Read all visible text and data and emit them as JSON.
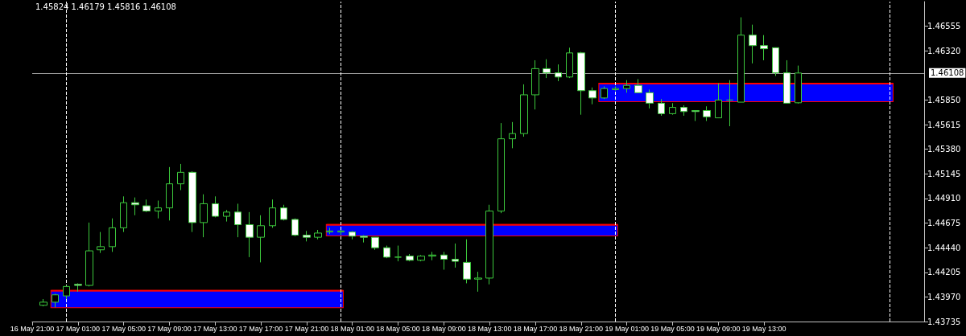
{
  "chart_data": {
    "type": "candlestick",
    "x": [
      "--05-16T22:00",
      "--05-16T23:00",
      "--05-17T00:00",
      "--05-17T01:00",
      "--05-17T02:00",
      "--05-17T03:00",
      "--05-17T04:00",
      "--05-17T05:00",
      "--05-17T06:00",
      "--05-17T07:00",
      "--05-17T08:00",
      "--05-17T09:00",
      "--05-17T10:00",
      "--05-17T11:00",
      "--05-17T12:00",
      "--05-17T13:00",
      "--05-17T14:00",
      "--05-17T15:00",
      "--05-17T16:00",
      "--05-17T17:00",
      "--05-17T18:00",
      "--05-17T19:00",
      "--05-17T20:00",
      "--05-17T21:00",
      "--05-17T22:00",
      "--05-17T23:00",
      "--05-18T00:00",
      "--05-18T01:00",
      "--05-18T02:00",
      "--05-18T03:00",
      "--05-18T04:00",
      "--05-18T05:00",
      "--05-18T06:00",
      "--05-18T07:00",
      "--05-18T08:00",
      "--05-18T09:00",
      "--05-18T10:00",
      "--05-18T11:00",
      "--05-18T12:00",
      "--05-18T13:00",
      "--05-18T14:00",
      "--05-18T15:00",
      "--05-18T16:00",
      "--05-18T17:00",
      "--05-18T18:00",
      "--05-18T19:00",
      "--05-18T20:00",
      "--05-18T21:00",
      "--05-18T22:00",
      "--05-18T23:00",
      "--05-19T00:00",
      "--05-19T01:00",
      "--05-19T02:00",
      "--05-19T03:00",
      "--05-19T04:00",
      "--05-19T05:00",
      "--05-19T06:00",
      "--05-19T07:00",
      "--05-19T08:00",
      "--05-19T09:00",
      "--05-19T10:00",
      "--05-19T11:00",
      "--05-19T12:00",
      "--05-19T13:00",
      "--05-19T14:00",
      "--05-19T15:00",
      "--05-19T16:00"
    ],
    "series": [
      {
        "color": "#3cc83c",
        "ohlc": [
          [
            1.4389,
            1.4395,
            1.4388,
            1.4392
          ],
          [
            1.4392,
            1.44,
            1.4387,
            1.4399
          ],
          [
            1.4398,
            1.4408,
            1.4395,
            1.4407
          ],
          [
            1.4409,
            1.441,
            1.4402,
            1.4408
          ],
          [
            1.4408,
            1.4468,
            1.4407,
            1.4441
          ],
          [
            1.4442,
            1.4459,
            1.4439,
            1.4445
          ],
          [
            1.4445,
            1.4472,
            1.444,
            1.4463
          ],
          [
            1.4463,
            1.4493,
            1.4459,
            1.4487
          ],
          [
            1.4487,
            1.4492,
            1.4475,
            1.4485
          ],
          [
            1.4484,
            1.449,
            1.4478,
            1.4479
          ],
          [
            1.4479,
            1.4489,
            1.4472,
            1.4482
          ],
          [
            1.4482,
            1.4521,
            1.447,
            1.4505
          ],
          [
            1.4505,
            1.4524,
            1.4499,
            1.4516
          ],
          [
            1.4516,
            1.4517,
            1.4459,
            1.4468
          ],
          [
            1.4468,
            1.4495,
            1.4454,
            1.4486
          ],
          [
            1.4486,
            1.4493,
            1.4473,
            1.4474
          ],
          [
            1.4474,
            1.448,
            1.4469,
            1.4478
          ],
          [
            1.4478,
            1.4486,
            1.4454,
            1.4466
          ],
          [
            1.4466,
            1.4478,
            1.4435,
            1.4454
          ],
          [
            1.4454,
            1.4475,
            1.443,
            1.4465
          ],
          [
            1.4465,
            1.449,
            1.4463,
            1.4482
          ],
          [
            1.4482,
            1.4485,
            1.447,
            1.4471
          ],
          [
            1.4471,
            1.4472,
            1.4455,
            1.4456
          ],
          [
            1.4456,
            1.446,
            1.445,
            1.4454
          ],
          [
            1.4454,
            1.4461,
            1.4452,
            1.4458
          ],
          [
            1.4459,
            1.4463,
            1.4457,
            1.446
          ],
          [
            1.4459,
            1.4461,
            1.4456,
            1.446
          ],
          [
            1.4459,
            1.446,
            1.4452,
            1.4455
          ],
          [
            1.4455,
            1.4456,
            1.4449,
            1.4454
          ],
          [
            1.4454,
            1.4454,
            1.4442,
            1.4444
          ],
          [
            1.4444,
            1.4446,
            1.4434,
            1.4435
          ],
          [
            1.4435,
            1.4446,
            1.4431,
            1.4435
          ],
          [
            1.4436,
            1.4438,
            1.4431,
            1.4432
          ],
          [
            1.4432,
            1.4437,
            1.4431,
            1.4436
          ],
          [
            1.4436,
            1.444,
            1.4432,
            1.4437
          ],
          [
            1.4437,
            1.444,
            1.4423,
            1.4433
          ],
          [
            1.4433,
            1.4448,
            1.4425,
            1.4431
          ],
          [
            1.443,
            1.4452,
            1.441,
            1.4414
          ],
          [
            1.4414,
            1.4421,
            1.4402,
            1.4415
          ],
          [
            1.4415,
            1.4485,
            1.4409,
            1.4479
          ],
          [
            1.4479,
            1.4563,
            1.4477,
            1.4548
          ],
          [
            1.4548,
            1.4564,
            1.4539,
            1.4553
          ],
          [
            1.4553,
            1.46,
            1.455,
            1.459
          ],
          [
            1.459,
            1.4623,
            1.4576,
            1.4615
          ],
          [
            1.4615,
            1.4624,
            1.4606,
            1.4611
          ],
          [
            1.4611,
            1.4619,
            1.4603,
            1.4607
          ],
          [
            1.4607,
            1.4635,
            1.4606,
            1.463
          ],
          [
            1.463,
            1.4631,
            1.4571,
            1.4594
          ],
          [
            1.4594,
            1.4597,
            1.4581,
            1.4587
          ],
          [
            1.4587,
            1.4598,
            1.4586,
            1.4596
          ],
          [
            1.4595,
            1.4598,
            1.4594,
            1.4596
          ],
          [
            1.4596,
            1.4604,
            1.4592,
            1.4599
          ],
          [
            1.4599,
            1.4605,
            1.4592,
            1.4592
          ],
          [
            1.4592,
            1.4595,
            1.4577,
            1.4582
          ],
          [
            1.4582,
            1.4586,
            1.457,
            1.4572
          ],
          [
            1.4572,
            1.4582,
            1.4571,
            1.4578
          ],
          [
            1.4578,
            1.458,
            1.457,
            1.4574
          ],
          [
            1.4575,
            1.4575,
            1.4565,
            1.4574
          ],
          [
            1.4575,
            1.4579,
            1.4565,
            1.4569
          ],
          [
            1.4568,
            1.4601,
            1.4568,
            1.4585
          ],
          [
            1.4585,
            1.4604,
            1.456,
            1.4585
          ],
          [
            1.4583,
            1.4664,
            1.4583,
            1.4647
          ],
          [
            1.4647,
            1.4657,
            1.462,
            1.4637
          ],
          [
            1.4637,
            1.4647,
            1.4623,
            1.4634
          ],
          [
            1.4635,
            1.4635,
            1.4608,
            1.4611
          ],
          [
            1.4611,
            1.4623,
            1.4582,
            1.4582
          ],
          [
            1.45824,
            1.46179,
            1.45816,
            1.46108
          ]
        ]
      },
      {
        "type": "line",
        "color": "#ff0000",
        "x": [
          "--05-16T22:40",
          "--05-18T00:10"
        ],
        "values": [
          1.44028,
          1.44028
        ],
        "lower": [
          1.43871,
          1.43871
        ],
        "upper": [
          1.44028,
          1.44028
        ]
      },
      {
        "type": "line",
        "color": "#ff0000",
        "x": [
          "--05-17T22:45",
          "--05-19T00:10"
        ],
        "values": [
          1.44658,
          1.44658
        ],
        "lower": [
          1.44556,
          1.44556
        ],
        "upper": [
          1.44658,
          1.44658
        ]
      },
      {
        "type": "line",
        "color": "#ff0000",
        "x": [
          "--05-18T22:35",
          "--05-20T00:15"
        ],
        "values": [
          1.46007,
          1.46007
        ],
        "lower": [
          1.45838,
          1.45838
        ],
        "upper": [
          1.46007,
          1.46007
        ]
      }
    ],
    "xlim": [
      "--05-16T21:00",
      "--05-20T03:00"
    ],
    "xticks": [
      {
        "value": "--05-16T21:00",
        "label": "16 May 21:00"
      },
      {
        "value": "--05-17T01:00",
        "label": "17 May 01:00"
      },
      {
        "value": "--05-17T05:00",
        "label": "17 May 05:00"
      },
      {
        "value": "--05-17T09:00",
        "label": "17 May 09:00"
      },
      {
        "value": "--05-17T13:00",
        "label": "17 May 13:00"
      },
      {
        "value": "--05-17T17:00",
        "label": "17 May 17:00"
      },
      {
        "value": "--05-17T21:00",
        "label": "17 May 21:00"
      },
      {
        "value": "--05-18T01:00",
        "label": "18 May 01:00"
      },
      {
        "value": "--05-18T05:00",
        "label": "18 May 05:00"
      },
      {
        "value": "--05-18T09:00",
        "label": "18 May 09:00"
      },
      {
        "value": "--05-18T13:00",
        "label": "18 May 13:00"
      },
      {
        "value": "--05-18T17:00",
        "label": "18 May 17:00"
      },
      {
        "value": "--05-18T21:00",
        "label": "18 May 21:00"
      },
      {
        "value": "--05-19T01:00",
        "label": "19 May 01:00"
      },
      {
        "value": "--05-19T05:00",
        "label": "19 May 05:00"
      },
      {
        "value": "--05-19T09:00",
        "label": "19 May 09:00"
      },
      {
        "value": "--05-19T13:00",
        "label": "19 May 13:00"
      }
    ],
    "ylim": [
      1.43735,
      1.4679
    ],
    "yticks": [
      {
        "value": 1.43735,
        "label": "1.43735"
      },
      {
        "value": 1.4397,
        "label": "1.43970"
      },
      {
        "value": 1.44205,
        "label": "1.44205"
      },
      {
        "value": 1.4444,
        "label": "1.44440"
      },
      {
        "value": 1.44675,
        "label": "1.44675"
      },
      {
        "value": 1.4491,
        "label": "1.44910"
      },
      {
        "value": 1.45145,
        "label": "1.45145"
      },
      {
        "value": 1.4538,
        "label": "1.45380"
      },
      {
        "value": 1.45615,
        "label": "1.45615"
      },
      {
        "value": 1.4585,
        "label": "1.45850"
      },
      {
        "value": 1.4632,
        "label": "1.46320"
      },
      {
        "value": 1.46555,
        "label": "1.46555"
      }
    ],
    "ref_lines": [
      {
        "axis": "y",
        "value": 1.46108,
        "label": "1.46108",
        "color": "#a0a0a0",
        "line_style": "solid"
      },
      {
        "axis": "x",
        "value": "--05-17T00:00",
        "color": "#ffffff",
        "line_style": "dashed"
      },
      {
        "axis": "x",
        "value": "--05-18T00:00",
        "color": "#ffffff",
        "line_style": "dashed"
      },
      {
        "axis": "x",
        "value": "--05-19T00:00",
        "color": "#ffffff",
        "line_style": "dashed"
      },
      {
        "axis": "x",
        "value": "--05-20T00:00",
        "color": "#ffffff",
        "line_style": "dashed"
      }
    ],
    "annotations": [
      "1.45824 1.46179 1.45816 1.46108"
    ]
  }
}
